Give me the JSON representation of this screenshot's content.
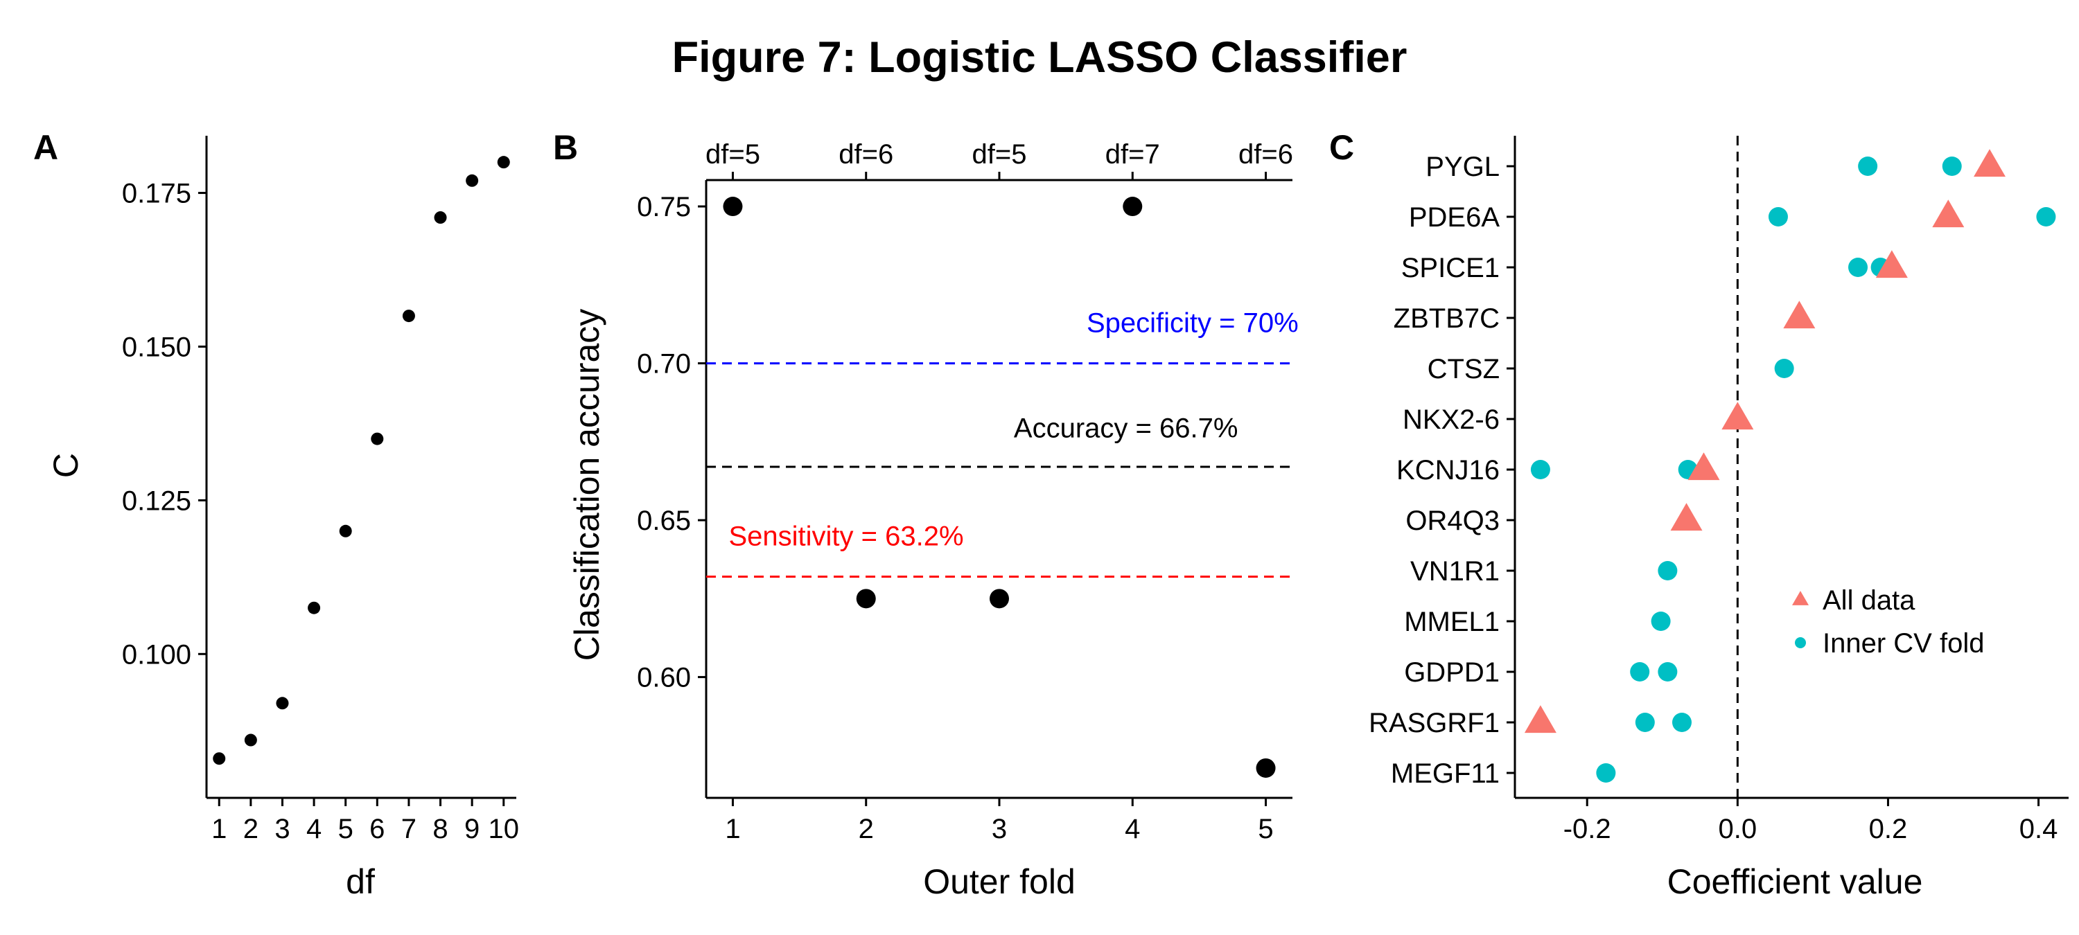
{
  "figure_title": "Figure 7: Logistic LASSO Classifier",
  "colors": {
    "axis": "#000000",
    "point": "#000000",
    "specificity": "#0000ff",
    "accuracy": "#000000",
    "sensitivity": "#ff0000",
    "all_data": "#f8766d",
    "inner_cv": "#00bfc4"
  },
  "chart_data": [
    {
      "panel": "A",
      "type": "scatter",
      "xlabel": "df",
      "ylabel": "C",
      "xticks": [
        "1",
        "2",
        "3",
        "4",
        "5",
        "6",
        "7",
        "8",
        "9",
        "10"
      ],
      "yticks": [
        "0.100",
        "0.125",
        "0.150",
        "0.175"
      ],
      "xlim": [
        0.6,
        10.4
      ],
      "ylim": [
        0.0766,
        0.1843
      ],
      "points": [
        {
          "x": 1,
          "y": 0.083
        },
        {
          "x": 2,
          "y": 0.086
        },
        {
          "x": 3,
          "y": 0.092
        },
        {
          "x": 4,
          "y": 0.1075
        },
        {
          "x": 5,
          "y": 0.12
        },
        {
          "x": 6,
          "y": 0.135
        },
        {
          "x": 7,
          "y": 0.155
        },
        {
          "x": 8,
          "y": 0.171
        },
        {
          "x": 9,
          "y": 0.177
        },
        {
          "x": 10,
          "y": 0.18
        }
      ]
    },
    {
      "panel": "B",
      "type": "scatter",
      "xlabel": "Outer fold",
      "ylabel": "Classification accuracy",
      "xticks": [
        "1",
        "2",
        "3",
        "4",
        "5"
      ],
      "top_ticks": [
        "df=5",
        "df=6",
        "df=5",
        "df=7",
        "df=6"
      ],
      "yticks": [
        "0.60",
        "0.65",
        "0.70",
        "0.75"
      ],
      "xlim": [
        0.8,
        5.2
      ],
      "ylim": [
        0.5615,
        0.7584
      ],
      "points": [
        {
          "x": 1,
          "y": 0.75
        },
        {
          "x": 2,
          "y": 0.625
        },
        {
          "x": 3,
          "y": 0.625
        },
        {
          "x": 4,
          "y": 0.75
        },
        {
          "x": 5,
          "y": 0.571
        }
      ],
      "hlines": [
        {
          "y": 0.7,
          "label": "Specificity = 70%",
          "color_key": "specificity",
          "label_x": 4.45,
          "label_y": 0.713
        },
        {
          "y": 0.667,
          "label": "Accuracy = 66.7%",
          "color_key": "accuracy",
          "label_x": 3.95,
          "label_y": 0.6795
        },
        {
          "y": 0.632,
          "label": "Sensitivity = 63.2%",
          "color_key": "sensitivity",
          "label_x": 1.0,
          "label_y": 0.645
        }
      ]
    },
    {
      "panel": "C",
      "type": "scatter",
      "xlabel": "Coefficient value",
      "ylabel": "",
      "xticks": [
        "-0.2",
        "0.0",
        "0.2",
        "0.4"
      ],
      "xtick_values": [
        -0.2,
        0.0,
        0.2,
        0.4
      ],
      "xlim": [
        -0.296,
        0.44
      ],
      "genes": [
        "PYGL",
        "PDE6A",
        "SPICE1",
        "ZBTB7C",
        "CTSZ",
        "NKX2-6",
        "KCNJ16",
        "OR4Q3",
        "VN1R1",
        "MMEL1",
        "GDPD1",
        "RASGRF1",
        "MEGF11"
      ],
      "vline": 0.0,
      "legend": [
        "All data",
        "Inner CV fold"
      ],
      "all_data": [
        {
          "gene": "PYGL",
          "x": 0.335
        },
        {
          "gene": "PDE6A",
          "x": 0.28
        },
        {
          "gene": "SPICE1",
          "x": 0.205
        },
        {
          "gene": "ZBTB7C",
          "x": 0.082
        },
        {
          "gene": "NKX2-6",
          "x": 0.0
        },
        {
          "gene": "KCNJ16",
          "x": -0.045
        },
        {
          "gene": "OR4Q3",
          "x": -0.068
        },
        {
          "gene": "RASGRF1",
          "x": -0.262
        }
      ],
      "inner_cv": [
        {
          "gene": "PYGL",
          "x": 0.173
        },
        {
          "gene": "PYGL",
          "x": 0.285
        },
        {
          "gene": "PDE6A",
          "x": 0.054
        },
        {
          "gene": "PDE6A",
          "x": 0.41
        },
        {
          "gene": "SPICE1",
          "x": 0.16
        },
        {
          "gene": "SPICE1",
          "x": 0.19
        },
        {
          "gene": "CTSZ",
          "x": 0.062
        },
        {
          "gene": "KCNJ16",
          "x": -0.262
        },
        {
          "gene": "KCNJ16",
          "x": -0.066
        },
        {
          "gene": "VN1R1",
          "x": -0.093
        },
        {
          "gene": "MMEL1",
          "x": -0.102
        },
        {
          "gene": "GDPD1",
          "x": -0.13
        },
        {
          "gene": "GDPD1",
          "x": -0.093
        },
        {
          "gene": "RASGRF1",
          "x": -0.123
        },
        {
          "gene": "RASGRF1",
          "x": -0.074
        },
        {
          "gene": "MEGF11",
          "x": -0.175
        }
      ]
    }
  ]
}
